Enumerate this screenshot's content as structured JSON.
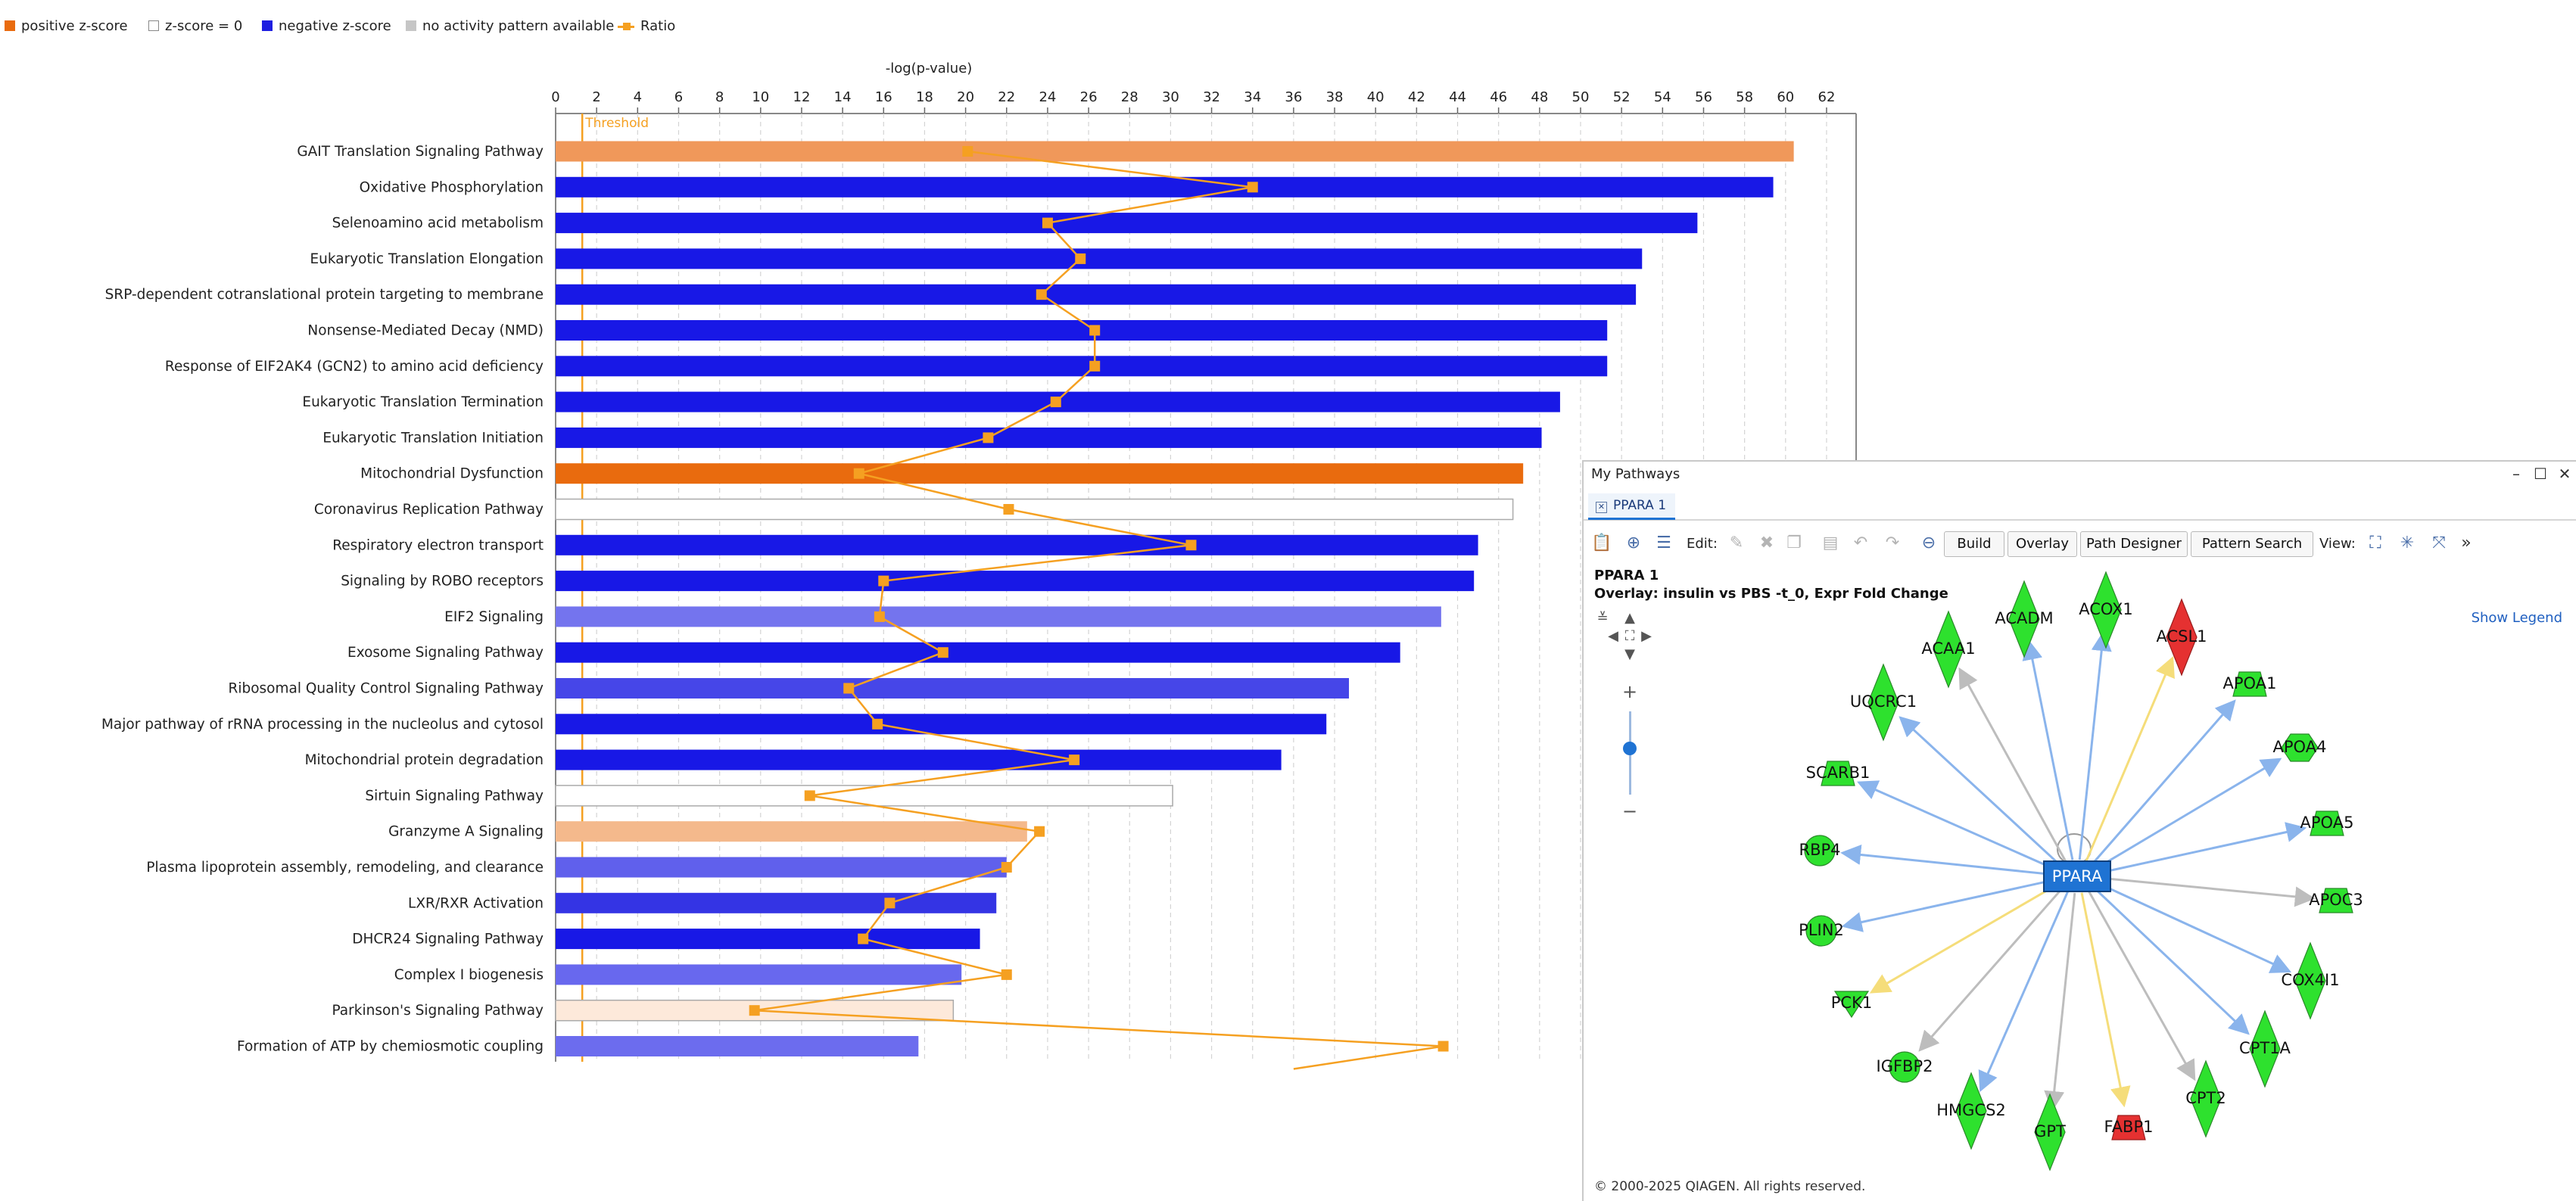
{
  "legend": [
    {
      "label": "positive z-score",
      "kind": "square",
      "color": "#e96b0e"
    },
    {
      "label": "z-score = 0",
      "kind": "square-outline",
      "color": "#ffffff"
    },
    {
      "label": "negative z-score",
      "kind": "square",
      "color": "#1e1ee0"
    },
    {
      "label": "no activity pattern available",
      "kind": "square",
      "color": "#c6c6c6"
    },
    {
      "label": "Ratio",
      "kind": "line-marker",
      "color": "#f5a021"
    }
  ],
  "chart_data": {
    "type": "bar",
    "orientation": "horizontal",
    "xlabel": "-log(p-value)",
    "xlim": [
      0,
      63
    ],
    "xticks": [
      0,
      2,
      4,
      6,
      8,
      10,
      12,
      14,
      16,
      18,
      20,
      22,
      24,
      26,
      28,
      30,
      32,
      34,
      36,
      38,
      40,
      42,
      44,
      46,
      48,
      50,
      52,
      54,
      56,
      58,
      60,
      62
    ],
    "threshold": {
      "label": "Threshold",
      "value": 1.3
    },
    "categories": [
      "GAIT Translation Signaling Pathway",
      "Oxidative Phosphorylation",
      "Selenoamino acid metabolism",
      "Eukaryotic Translation Elongation",
      "SRP-dependent cotranslational protein targeting to membrane",
      "Nonsense-Mediated Decay (NMD)",
      "Response of EIF2AK4 (GCN2) to amino acid deficiency",
      "Eukaryotic Translation Termination",
      "Eukaryotic Translation Initiation",
      "Mitochondrial Dysfunction",
      "Coronavirus Replication Pathway",
      "Respiratory electron transport",
      "Signaling by ROBO receptors",
      "EIF2 Signaling",
      "Exosome Signaling Pathway",
      "Ribosomal Quality Control Signaling Pathway",
      "Major pathway of rRNA processing in the nucleolus and cytosol",
      "Mitochondrial protein degradation",
      "Sirtuin Signaling Pathway",
      "Granzyme A Signaling",
      "Plasma lipoprotein assembly, remodeling, and clearance",
      "LXR/RXR Activation",
      "DHCR24 Signaling Pathway",
      "Complex I biogenesis",
      "Parkinson's Signaling Pathway",
      "Formation of ATP by chemiosmotic coupling"
    ],
    "values": [
      60.4,
      59.4,
      55.7,
      53.0,
      52.7,
      51.3,
      51.3,
      49.0,
      48.1,
      47.2,
      46.7,
      45.0,
      44.8,
      43.2,
      41.2,
      38.7,
      37.6,
      35.4,
      30.1,
      23.0,
      22.0,
      21.5,
      20.7,
      19.8,
      19.4,
      17.7
    ],
    "bar_colors": [
      "#f0985a",
      "#1818e6",
      "#1818e6",
      "#1818e6",
      "#1818e6",
      "#1818e6",
      "#1818e6",
      "#1818e6",
      "#1818e6",
      "#e96b0e",
      "#ffffff",
      "#1818e6",
      "#1818e6",
      "#7474ee",
      "#1818e6",
      "#4646e8",
      "#1818e6",
      "#1818e6",
      "#ffffff",
      "#f4b98c",
      "#6060ec",
      "#3434e4",
      "#1818e6",
      "#6868ee",
      "#fde9da",
      "#6c6cee"
    ],
    "ratio_series": {
      "name": "Ratio",
      "color": "#f5a021",
      "values": [
        20.1,
        34.0,
        24.0,
        25.6,
        23.7,
        26.3,
        26.3,
        24.4,
        21.1,
        14.8,
        22.1,
        31.0,
        16.0,
        15.8,
        18.9,
        14.3,
        15.7,
        25.3,
        12.4,
        23.6,
        22.0,
        16.3,
        15.0,
        22.0,
        9.7,
        43.3
      ],
      "tail_end": 36.0
    }
  },
  "panel": {
    "window_title": "My Pathways",
    "minimize": "–",
    "maximize": "☐",
    "close": "✕",
    "tab_label": "PPARA 1",
    "tab_close": "✕",
    "edit_label": "Edit:",
    "view_label": "View:",
    "buttons": {
      "build": "Build",
      "overlay": "Overlay",
      "path_designer": "Path Designer",
      "pattern_search": "Pattern Search"
    },
    "more": "»",
    "pathway_title": "PPARA 1",
    "overlay_text": "Overlay: insulin vs PBS -t_0, Expr Fold Change",
    "show_legend": "Show Legend",
    "copyright": "© 2000-2025 QIAGEN. All rights reserved."
  },
  "network": {
    "center": {
      "label": "PPARA",
      "color": "#1f73d3"
    },
    "nodes": [
      {
        "label": "ACADM",
        "shape": "diamond",
        "color": "#2ee12e",
        "edge": "blue"
      },
      {
        "label": "ACOX1",
        "shape": "diamond",
        "color": "#2ee12e",
        "edge": "blue"
      },
      {
        "label": "ACSL1",
        "shape": "diamond",
        "color": "#e53131",
        "edge": "yellow"
      },
      {
        "label": "APOA1",
        "shape": "trapezoid",
        "color": "#2ee12e",
        "edge": "blue"
      },
      {
        "label": "APOA4",
        "shape": "hexagon",
        "color": "#2ee12e",
        "edge": "blue"
      },
      {
        "label": "APOA5",
        "shape": "trapezoid",
        "color": "#2ee12e",
        "edge": "blue"
      },
      {
        "label": "APOC3",
        "shape": "trapezoid",
        "color": "#2ee12e",
        "edge": "gray"
      },
      {
        "label": "COX4I1",
        "shape": "diamond",
        "color": "#2ee12e",
        "edge": "blue"
      },
      {
        "label": "CPT1A",
        "shape": "diamond",
        "color": "#2ee12e",
        "edge": "blue"
      },
      {
        "label": "CPT2",
        "shape": "diamond",
        "color": "#2ee12e",
        "edge": "gray"
      },
      {
        "label": "FABP1",
        "shape": "trapezoid",
        "color": "#e53131",
        "edge": "yellow"
      },
      {
        "label": "GPT",
        "shape": "diamond",
        "color": "#2ee12e",
        "edge": "gray"
      },
      {
        "label": "HMGCS2",
        "shape": "diamond",
        "color": "#2ee12e",
        "edge": "blue"
      },
      {
        "label": "IGFBP2",
        "shape": "circle",
        "color": "#2ee12e",
        "edge": "gray"
      },
      {
        "label": "PCK1",
        "shape": "triangle",
        "color": "#2ee12e",
        "edge": "yellow"
      },
      {
        "label": "PLIN2",
        "shape": "circle",
        "color": "#2ee12e",
        "edge": "blue"
      },
      {
        "label": "RBP4",
        "shape": "circle",
        "color": "#2ee12e",
        "edge": "blue"
      },
      {
        "label": "SCARB1",
        "shape": "trapezoid",
        "color": "#2ee12e",
        "edge": "blue"
      },
      {
        "label": "UQCRC1",
        "shape": "diamond",
        "color": "#2ee12e",
        "edge": "blue"
      },
      {
        "label": "ACAA1",
        "shape": "diamond",
        "color": "#2ee12e",
        "edge": "gray"
      }
    ],
    "edge_colors": {
      "blue": "#8ab4ec",
      "gray": "#bdbdbd",
      "yellow": "#f5dd7a"
    }
  }
}
